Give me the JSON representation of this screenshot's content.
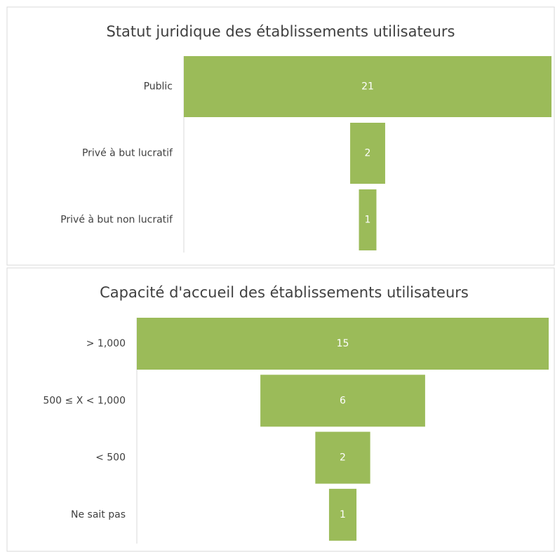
{
  "chart_data": [
    {
      "type": "funnel",
      "title": "Statut juridique des établissements utilisateurs",
      "categories": [
        "Public",
        "Privé à but lucratif",
        "Privé à but non lucratif"
      ],
      "values": [
        21,
        2,
        1
      ],
      "color": "#9bbb59"
    },
    {
      "type": "funnel",
      "title": "Capacité d'accueil des établissements utilisateurs",
      "categories": [
        "> 1,000",
        "500 ≤ X < 1,000",
        "< 500",
        "Ne sait pas"
      ],
      "values": [
        15,
        6,
        2,
        1
      ],
      "color": "#9bbb59"
    }
  ]
}
